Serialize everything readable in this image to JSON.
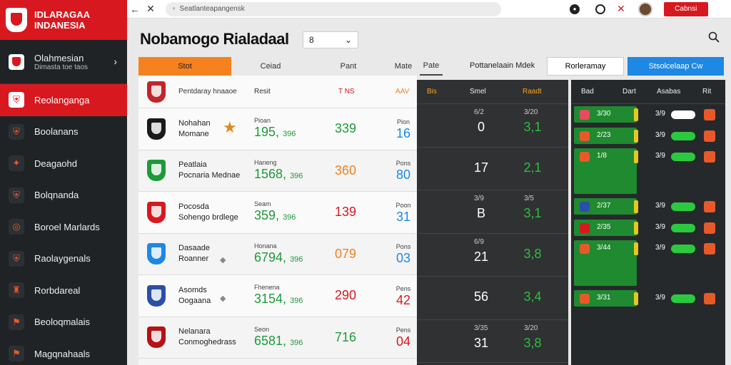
{
  "brand": {
    "title": "IDLARAGAA",
    "subtitle": "INDANESIA",
    "color": "#d7191f"
  },
  "browser": {
    "url": "Seatlanteapangensk",
    "button": "Cabnsi"
  },
  "sidebar": {
    "account": {
      "name": "Olahmesian",
      "sub": "Dimasta toe taos",
      "chevron": "›"
    },
    "items": [
      {
        "label": "Reolanganga",
        "icon": "shield-icon",
        "active": true
      },
      {
        "label": "Boolanans",
        "icon": "shield-icon"
      },
      {
        "label": "Deagaohd",
        "icon": "star-icon"
      },
      {
        "label": "Bolqnanda",
        "icon": "shield-icon"
      },
      {
        "label": "Boroel Marlards",
        "icon": "globe-icon"
      },
      {
        "label": "Raolaygenals",
        "icon": "shield-icon"
      },
      {
        "label": "Rorbdareal",
        "icon": "trophy-icon"
      },
      {
        "label": "Beoloqmalais",
        "icon": "flag-icon"
      },
      {
        "label": "Magqnahaals",
        "icon": "flag-icon"
      }
    ]
  },
  "header": {
    "title": "Nobamogo Rialadaal",
    "season": "8"
  },
  "tabs": {
    "items": [
      "Stot",
      "Ceiad",
      "Pant",
      "Mate",
      "Pate"
    ],
    "right_label": "Pottanelaain  Mdek",
    "btn_a": "Rorleramay",
    "btn_b": "Stsolcelaap Cw"
  },
  "table_left": {
    "header": [
      "Pentdaray hnaaoe",
      "Resit",
      "T NS",
      "AAV"
    ],
    "rows": [
      {
        "team": "Nohahan",
        "team2": "Momane",
        "lbl": "Pioan",
        "big": "195,",
        "small": "396",
        "s2": "339",
        "s3lbl": "Pion",
        "s3": "16",
        "crest": "#1a1a1a",
        "s2color": "#1f9a3a",
        "s3color": "#1e88e5"
      },
      {
        "team": "Peatlaia",
        "team2": "Pocnaria Mednae",
        "lbl": "Haneng",
        "big": "1568,",
        "small": "396",
        "s2": "360",
        "s3lbl": "Pons",
        "s3": "80",
        "crest": "#1f9a3a",
        "s2color": "#f5821f",
        "s3color": "#1e88e5"
      },
      {
        "team": "Pocosda",
        "team2": "Sohengo brdlege",
        "lbl": "Seam",
        "big": "359,",
        "small": "396",
        "s2": "139",
        "s3lbl": "Poon",
        "s3": "31",
        "crest": "#d7191f",
        "s2color": "#d7191f",
        "s3color": "#1e88e5"
      },
      {
        "team": "Dasaade",
        "team2": "Roanner",
        "lbl": "Honana",
        "big": "6794,",
        "small": "396",
        "s2": "079",
        "s3lbl": "Pons",
        "s3": "03",
        "crest": "#1e88e5",
        "s2color": "#f5821f",
        "s3color": "#1e88e5"
      },
      {
        "team": "Asomds",
        "team2": "Oogaana",
        "lbl": "Fhenena",
        "big": "3154,",
        "small": "396",
        "s2": "290",
        "s3lbl": "Pens",
        "s3": "42",
        "crest": "#2b4fa8",
        "s2color": "#d7191f",
        "s3color": "#d7191f"
      },
      {
        "team": "Nelanara",
        "team2": "Conmoghedrass",
        "lbl": "Seon",
        "big": "6581,",
        "small": "396",
        "s2": "716",
        "s3lbl": "Pens",
        "s3": "04",
        "crest": "#b51216",
        "s2color": "#1f9a3a",
        "s3color": "#d7191f"
      }
    ],
    "top_row_team": "Pentdaray hnaaoe"
  },
  "panel_mid": {
    "header": [
      "Bis",
      "Smel",
      "Raadt"
    ],
    "rows": [
      {
        "top": "6/2",
        "num": "0",
        "gtop": "3/20",
        "green": "3,1"
      },
      {
        "top": "",
        "num": "17",
        "gtop": "",
        "green": "2,1"
      },
      {
        "top": "3/9",
        "num": "B",
        "gtop": "3/5",
        "green": "3,1"
      },
      {
        "top": "6/9",
        "num": "21",
        "gtop": "",
        "green": "3,8"
      },
      {
        "top": "",
        "num": "56",
        "gtop": "",
        "green": "3,4"
      },
      {
        "top": "3/35",
        "num": "31",
        "gtop": "3/20",
        "green": "3,8"
      }
    ]
  },
  "panel_right": {
    "header": [
      "Bad",
      "Dart",
      "Asabas",
      "Rit"
    ],
    "rows": [
      {
        "v": "3/30",
        "pct": "3/9",
        "bar": "white",
        "badge": "#e84a5f"
      },
      {
        "v": "2/23",
        "pct": "3/9",
        "bar": "green",
        "badge": "#e8592a"
      },
      {
        "v": "1/8",
        "pct": "3/9",
        "bar": "green",
        "badge": "#e8592a",
        "tall": true
      },
      {
        "v": "2/37",
        "pct": "3/9",
        "bar": "green",
        "badge": "#2b4fa8"
      },
      {
        "v": "2/35",
        "pct": "3/9",
        "bar": "green",
        "badge": "#d7191f"
      },
      {
        "v": "3/44",
        "pct": "3/9",
        "bar": "green",
        "badge": "#e8592a",
        "tall": true
      },
      {
        "v": "3/31",
        "pct": "3/9",
        "bar": "green",
        "badge": "#e8592a"
      }
    ]
  }
}
